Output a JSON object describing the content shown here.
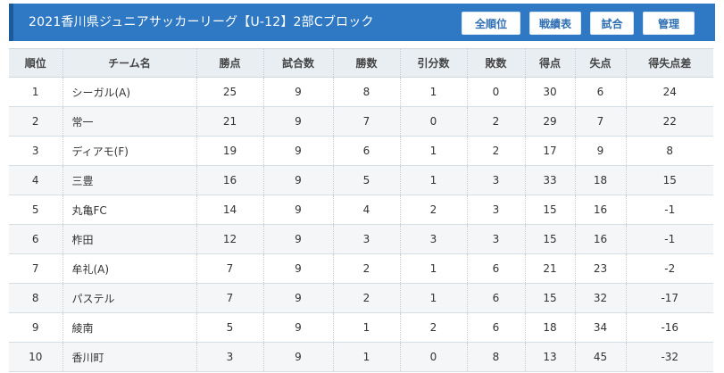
{
  "header": {
    "title": "2021香川県ジュニアサッカーリーグ【U-12】2部Cブロック",
    "buttons": [
      "全順位",
      "戦績表",
      "試合",
      "管理"
    ]
  },
  "table": {
    "columns": [
      "順位",
      "チーム名",
      "勝点",
      "試合数",
      "勝数",
      "引分数",
      "敗数",
      "得点",
      "失点",
      "得失点差"
    ],
    "rows": [
      [
        "1",
        "シーガル(A)",
        "25",
        "9",
        "8",
        "1",
        "0",
        "30",
        "6",
        "24"
      ],
      [
        "2",
        "常一",
        "21",
        "9",
        "7",
        "0",
        "2",
        "29",
        "7",
        "22"
      ],
      [
        "3",
        "ディアモ(F)",
        "19",
        "9",
        "6",
        "1",
        "2",
        "17",
        "9",
        "8"
      ],
      [
        "4",
        "三豊",
        "16",
        "9",
        "5",
        "1",
        "3",
        "33",
        "18",
        "15"
      ],
      [
        "5",
        "丸亀FC",
        "14",
        "9",
        "4",
        "2",
        "3",
        "15",
        "16",
        "-1"
      ],
      [
        "6",
        "柞田",
        "12",
        "9",
        "3",
        "3",
        "3",
        "15",
        "16",
        "-1"
      ],
      [
        "7",
        "牟礼(A)",
        "7",
        "9",
        "2",
        "1",
        "6",
        "21",
        "23",
        "-2"
      ],
      [
        "8",
        "パステル",
        "7",
        "9",
        "2",
        "1",
        "6",
        "15",
        "32",
        "-17"
      ],
      [
        "9",
        "綾南",
        "5",
        "9",
        "1",
        "2",
        "6",
        "18",
        "34",
        "-16"
      ],
      [
        "10",
        "香川町",
        "3",
        "9",
        "1",
        "0",
        "8",
        "13",
        "45",
        "-32"
      ]
    ]
  }
}
